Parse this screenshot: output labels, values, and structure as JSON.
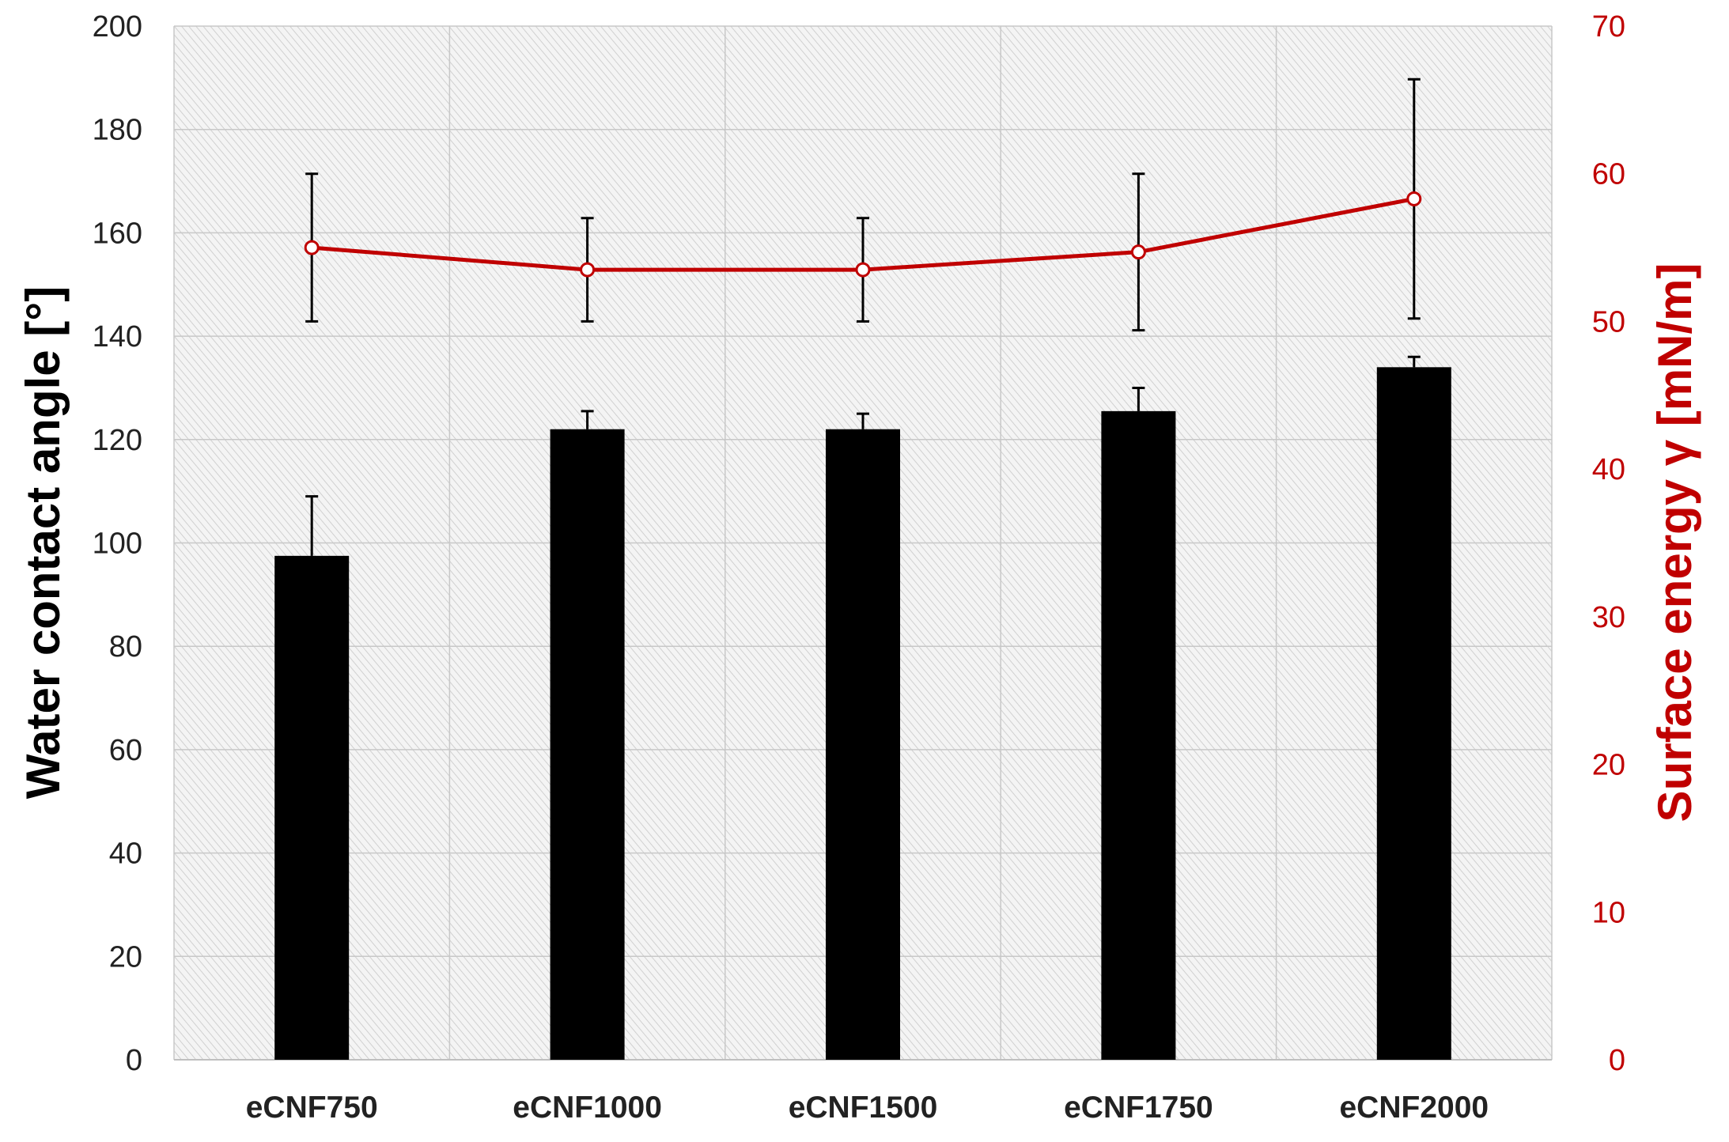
{
  "chart_data": {
    "type": "bar",
    "categories": [
      "eCNF750",
      "eCNF1000",
      "eCNF1500",
      "eCNF1750",
      "eCNF2000"
    ],
    "ylabel": "Water contact angle [°]",
    "ylabel_right": "Surface energy γ [mN/m]",
    "ylim": [
      0,
      200
    ],
    "ylim_right": [
      0,
      70
    ],
    "yticks": [
      "0",
      "20",
      "40",
      "60",
      "80",
      "100",
      "120",
      "140",
      "160",
      "180",
      "200"
    ],
    "yticks_right": [
      "0",
      "10",
      "20",
      "30",
      "40",
      "50",
      "60",
      "70"
    ],
    "grid": true,
    "series": [
      {
        "type": "bar",
        "axis": "left",
        "values": [
          97.5,
          122,
          122,
          125.5,
          134
        ],
        "errors": [
          11.5,
          3.5,
          3.0,
          4.5,
          2.0
        ],
        "color": "#000000"
      },
      {
        "type": "line",
        "axis": "right",
        "values": [
          55.0,
          53.5,
          53.5,
          54.7,
          58.3
        ],
        "errors": [
          5.0,
          3.5,
          3.5,
          5.3,
          8.1
        ],
        "color": "#c00000",
        "marker": "open-circle"
      }
    ]
  }
}
